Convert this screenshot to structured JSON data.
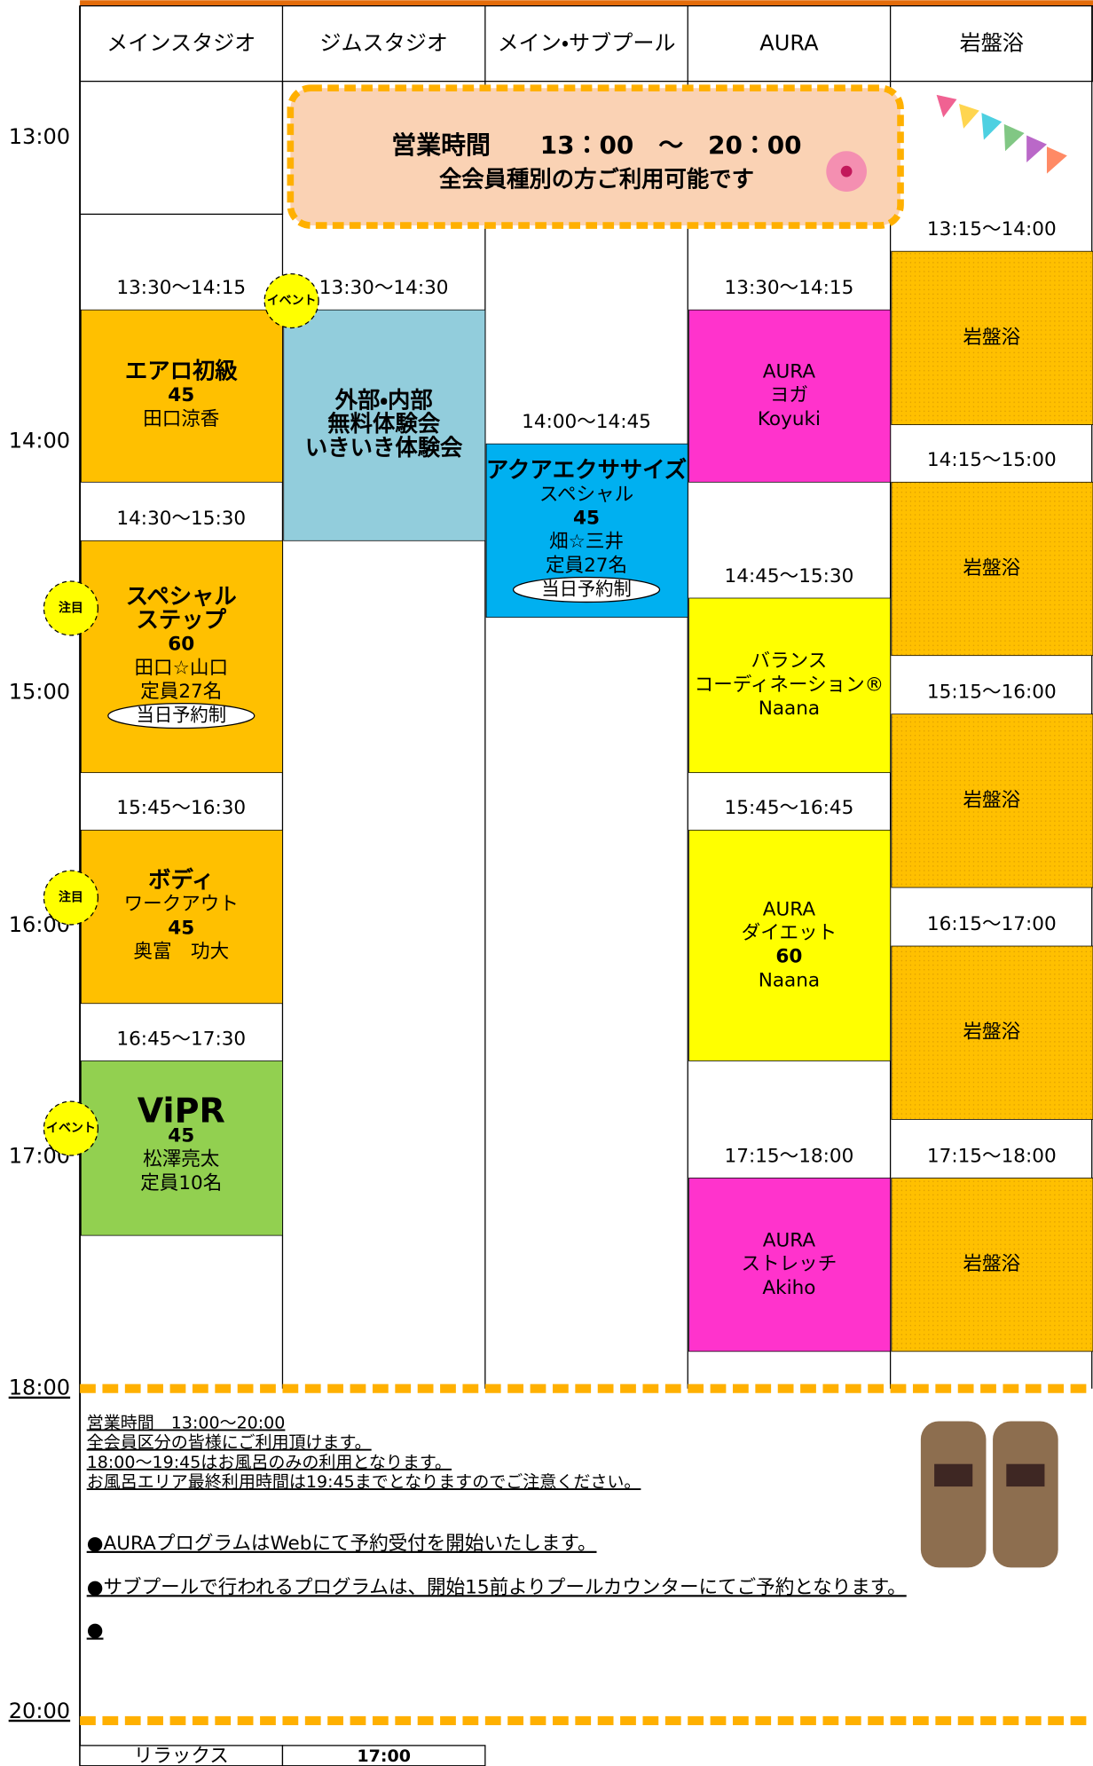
{
  "columns": [
    {
      "name": "メインスタジオ",
      "events": [
        {
          "time": "13:30～14:15",
          "lines": [
            "エアロ初級",
            "45",
            "田口涼香"
          ]
        },
        {
          "time": "14:30～15:30",
          "lines": [
            "スペシャル",
            "ステップ",
            "60",
            "田口☆山口",
            "定員27名"
          ],
          "badge": "注目",
          "note": "当日予約制"
        },
        {
          "time": "15:45～16:30",
          "lines": [
            "ボディ",
            "ワークアウト",
            "45",
            "奥富　功大"
          ],
          "badge": "注目"
        },
        {
          "time": "16:45～17:30",
          "lines": [
            "ViPR",
            "45",
            "松澤亮太",
            "定員10名"
          ],
          "badge": "イベント"
        }
      ]
    },
    {
      "name": "ジムスタジオ",
      "events": [
        {
          "time": "13:30～14:30",
          "lines": [
            "外部・内部",
            "無料体験会",
            "いきいき体験会"
          ],
          "badge": "イベント"
        }
      ]
    },
    {
      "name": "メイン・サブプール",
      "events": [
        {
          "time": "14:00～14:45",
          "lines": [
            "アクアエクササイズ",
            "スペシャル",
            "45",
            "畑☆三井",
            "定員27名"
          ],
          "note": "当日予約制"
        }
      ]
    },
    {
      "name": "AURA",
      "events": [
        {
          "time": "13:30～14:15",
          "lines": [
            "AURA",
            "ヨガ",
            "Koyuki"
          ]
        },
        {
          "time": "14:45～15:30",
          "lines": [
            "バランス",
            "コーディネーション®",
            "Naana"
          ]
        },
        {
          "time": "15:45～16:45",
          "lines": [
            "AURA",
            "ダイエット",
            "60",
            "Naana"
          ]
        },
        {
          "time": "17:15～18:00",
          "lines": [
            "AURA",
            "ストレッチ",
            "Akiho"
          ]
        }
      ]
    },
    {
      "name": "岩盤浴",
      "events": [
        {
          "time": "13:15～14:00",
          "lines": [
            "岩盤浴"
          ]
        },
        {
          "time": "14:15～15:00",
          "lines": [
            "岩盤浴"
          ]
        },
        {
          "time": "15:15～16:00",
          "lines": [
            "岩盤浴"
          ]
        },
        {
          "time": "16:15～17:00",
          "lines": [
            "岩盤浴"
          ]
        },
        {
          "time": "17:15～18:00",
          "lines": [
            "岩盤浴"
          ]
        }
      ]
    }
  ],
  "time_labels": [
    "13:00",
    "14:00",
    "15:00",
    "16:00",
    "17:00",
    "18:00",
    "20:00"
  ],
  "banner": {
    "line1": "営業時間　　13：00　～　20：00",
    "line2": "全会員種別の方ご利用可能です"
  },
  "notes": {
    "small": [
      "営業時間　13:00～20:00",
      "全会員区分の皆様にご利用頂けます。",
      "18:00～19:45はお風呂のみの利用となります。",
      "お風呂エリア最終利用時間は19:45までとなりますのでご注意ください。"
    ],
    "large": [
      "●AURAプログラムはWebにて予約受付を開始いたします。",
      "●サブプールで行われるプログラムは、開始15前よりプールカウンターにてご予約となります。",
      "●"
    ]
  },
  "footer": {
    "cells": [
      "リラックス",
      "17:00"
    ]
  }
}
